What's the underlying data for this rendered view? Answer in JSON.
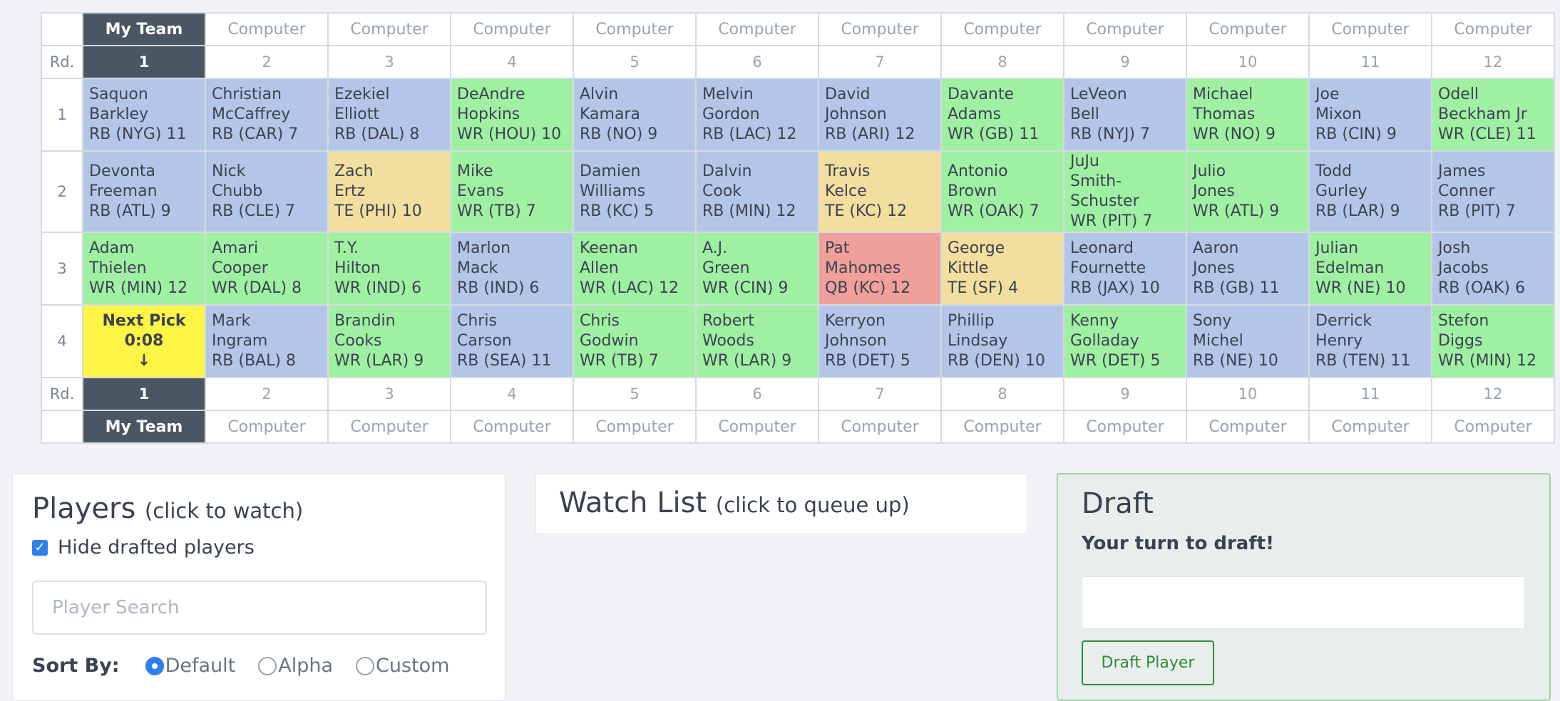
{
  "board": {
    "rd_label": "Rd.",
    "teams": [
      "My Team",
      "Computer",
      "Computer",
      "Computer",
      "Computer",
      "Computer",
      "Computer",
      "Computer",
      "Computer",
      "Computer",
      "Computer",
      "Computer"
    ],
    "pick_numbers": [
      "1",
      "2",
      "3",
      "4",
      "5",
      "6",
      "7",
      "8",
      "9",
      "10",
      "11",
      "12"
    ],
    "rounds": [
      {
        "round": "1",
        "picks": [
          {
            "first": "Saquon",
            "last": "Barkley",
            "info": "RB (NYG) 11",
            "pos": "RB"
          },
          {
            "first": "Christian",
            "last": "McCaffrey",
            "info": "RB (CAR) 7",
            "pos": "RB"
          },
          {
            "first": "Ezekiel",
            "last": "Elliott",
            "info": "RB (DAL) 8",
            "pos": "RB"
          },
          {
            "first": "DeAndre",
            "last": "Hopkins",
            "info": "WR (HOU) 10",
            "pos": "WR"
          },
          {
            "first": "Alvin",
            "last": "Kamara",
            "info": "RB (NO) 9",
            "pos": "RB"
          },
          {
            "first": "Melvin",
            "last": "Gordon",
            "info": "RB (LAC) 12",
            "pos": "RB"
          },
          {
            "first": "David",
            "last": "Johnson",
            "info": "RB (ARI) 12",
            "pos": "RB"
          },
          {
            "first": "Davante",
            "last": "Adams",
            "info": "WR (GB) 11",
            "pos": "WR"
          },
          {
            "first": "LeVeon",
            "last": "Bell",
            "info": "RB (NYJ) 7",
            "pos": "RB"
          },
          {
            "first": "Michael",
            "last": "Thomas",
            "info": "WR (NO) 9",
            "pos": "WR"
          },
          {
            "first": "Joe",
            "last": "Mixon",
            "info": "RB (CIN) 9",
            "pos": "RB"
          },
          {
            "first": "Odell",
            "last": "Beckham Jr",
            "info": "WR (CLE) 11",
            "pos": "WR"
          }
        ]
      },
      {
        "round": "2",
        "picks": [
          {
            "first": "Devonta",
            "last": "Freeman",
            "info": "RB (ATL) 9",
            "pos": "RB"
          },
          {
            "first": "Nick",
            "last": "Chubb",
            "info": "RB (CLE) 7",
            "pos": "RB"
          },
          {
            "first": "Zach",
            "last": "Ertz",
            "info": "TE (PHI) 10",
            "pos": "TE"
          },
          {
            "first": "Mike",
            "last": "Evans",
            "info": "WR (TB) 7",
            "pos": "WR"
          },
          {
            "first": "Damien",
            "last": "Williams",
            "info": "RB (KC) 5",
            "pos": "RB"
          },
          {
            "first": "Dalvin",
            "last": "Cook",
            "info": "RB (MIN) 12",
            "pos": "RB"
          },
          {
            "first": "Travis",
            "last": "Kelce",
            "info": "TE (KC) 12",
            "pos": "TE"
          },
          {
            "first": "Antonio",
            "last": "Brown",
            "info": "WR (OAK) 7",
            "pos": "WR"
          },
          {
            "first": "JuJu",
            "last": "Smith-\nSchuster",
            "info": "WR (PIT) 7",
            "pos": "WR"
          },
          {
            "first": "Julio",
            "last": "Jones",
            "info": "WR (ATL) 9",
            "pos": "WR"
          },
          {
            "first": "Todd",
            "last": "Gurley",
            "info": "RB (LAR) 9",
            "pos": "RB"
          },
          {
            "first": "James",
            "last": "Conner",
            "info": "RB (PIT) 7",
            "pos": "RB"
          }
        ]
      },
      {
        "round": "3",
        "picks": [
          {
            "first": "Adam",
            "last": "Thielen",
            "info": "WR (MIN) 12",
            "pos": "WR"
          },
          {
            "first": "Amari",
            "last": "Cooper",
            "info": "WR (DAL) 8",
            "pos": "WR"
          },
          {
            "first": "T.Y.",
            "last": "Hilton",
            "info": "WR (IND) 6",
            "pos": "WR"
          },
          {
            "first": "Marlon",
            "last": "Mack",
            "info": "RB (IND) 6",
            "pos": "RB"
          },
          {
            "first": "Keenan",
            "last": "Allen",
            "info": "WR (LAC) 12",
            "pos": "WR"
          },
          {
            "first": "A.J.",
            "last": "Green",
            "info": "WR (CIN) 9",
            "pos": "WR"
          },
          {
            "first": "Pat",
            "last": "Mahomes",
            "info": "QB (KC) 12",
            "pos": "QB"
          },
          {
            "first": "George",
            "last": "Kittle",
            "info": "TE (SF) 4",
            "pos": "TE"
          },
          {
            "first": "Leonard",
            "last": "Fournette",
            "info": "RB (JAX) 10",
            "pos": "RB"
          },
          {
            "first": "Aaron",
            "last": "Jones",
            "info": "RB (GB) 11",
            "pos": "RB"
          },
          {
            "first": "Julian",
            "last": "Edelman",
            "info": "WR (NE) 10",
            "pos": "WR"
          },
          {
            "first": "Josh",
            "last": "Jacobs",
            "info": "RB (OAK) 6",
            "pos": "RB"
          }
        ]
      },
      {
        "round": "4",
        "next_pick": {
          "label": "Next Pick",
          "timer": "0:08",
          "arrow": "↓"
        },
        "picks": [
          null,
          {
            "first": "Mark",
            "last": "Ingram",
            "info": "RB (BAL) 8",
            "pos": "RB"
          },
          {
            "first": "Brandin",
            "last": "Cooks",
            "info": "WR (LAR) 9",
            "pos": "WR"
          },
          {
            "first": "Chris",
            "last": "Carson",
            "info": "RB (SEA) 11",
            "pos": "RB"
          },
          {
            "first": "Chris",
            "last": "Godwin",
            "info": "WR (TB) 7",
            "pos": "WR"
          },
          {
            "first": "Robert",
            "last": "Woods",
            "info": "WR (LAR) 9",
            "pos": "WR"
          },
          {
            "first": "Kerryon",
            "last": "Johnson",
            "info": "RB (DET) 5",
            "pos": "RB"
          },
          {
            "first": "Phillip",
            "last": "Lindsay",
            "info": "RB (DEN) 10",
            "pos": "RB"
          },
          {
            "first": "Kenny",
            "last": "Golladay",
            "info": "WR (DET) 5",
            "pos": "WR"
          },
          {
            "first": "Sony",
            "last": "Michel",
            "info": "RB (NE) 10",
            "pos": "RB"
          },
          {
            "first": "Derrick",
            "last": "Henry",
            "info": "RB (TEN) 11",
            "pos": "RB"
          },
          {
            "first": "Stefon",
            "last": "Diggs",
            "info": "WR (MIN) 12",
            "pos": "WR"
          }
        ]
      }
    ],
    "position_colors": {
      "RB": "#b4c6e8",
      "WR": "#a0f0a3",
      "TE": "#f2de9e",
      "QB": "#f0a09b",
      "next": "#fcf545",
      "my_team": "#4a5662"
    }
  },
  "players_panel": {
    "title": "Players",
    "subtitle": "(click to watch)",
    "hide_drafted_label": "Hide drafted players",
    "hide_drafted_checked": true,
    "search_placeholder": "Player Search",
    "sort_label": "Sort By:",
    "sort_options": [
      "Default",
      "Alpha",
      "Custom"
    ],
    "sort_selected": "Default"
  },
  "watch_panel": {
    "title": "Watch List",
    "subtitle": "(click to queue up)"
  },
  "draft_panel": {
    "title": "Draft",
    "status": "Your turn to draft!",
    "button_label": "Draft Player"
  }
}
